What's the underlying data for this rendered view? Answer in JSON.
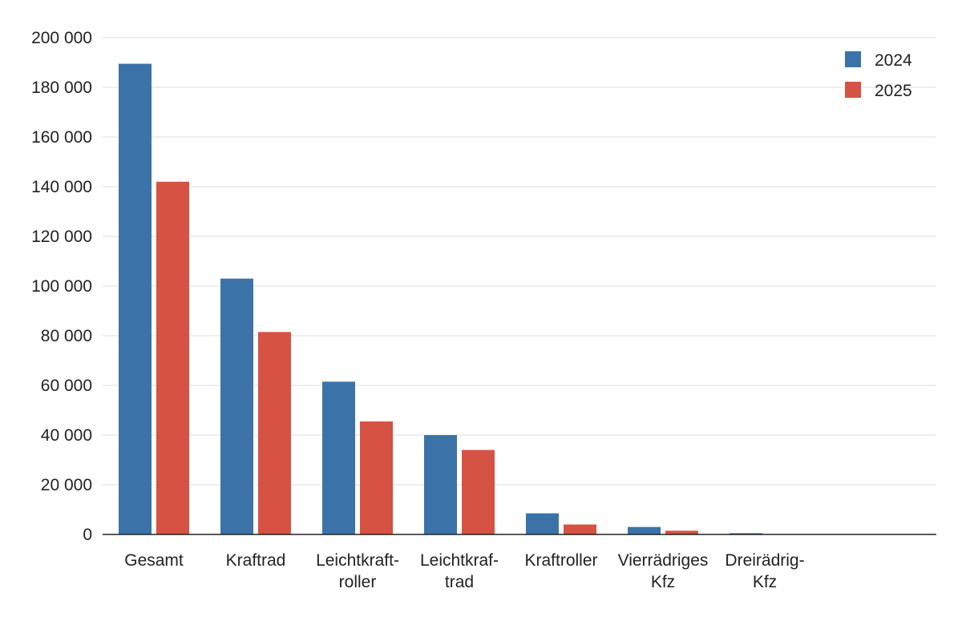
{
  "chart_data": {
    "type": "bar",
    "categories": [
      [
        "Gesamt"
      ],
      [
        "Kraftrad"
      ],
      [
        "Leichtkraft-",
        "roller"
      ],
      [
        "Leichtkraf-",
        "trad"
      ],
      [
        "Kraftroller"
      ],
      [
        "Vierrädriges",
        "Kfz"
      ],
      [
        "Dreirädrig-",
        "Kfz"
      ]
    ],
    "series": [
      {
        "name": "2024",
        "color": "#3b73a8",
        "values": [
          189500,
          103000,
          61500,
          40000,
          8500,
          3000,
          500
        ]
      },
      {
        "name": "2025",
        "color": "#d65243",
        "values": [
          142000,
          81500,
          45500,
          34000,
          4000,
          1500,
          0
        ]
      }
    ],
    "yticks": [
      "0",
      "20 000",
      "40 000",
      "60 000",
      "80 000",
      "100 000",
      "120 000",
      "140 000",
      "160 000",
      "180 000",
      "200 000"
    ],
    "ylim": [
      0,
      200000
    ],
    "grid": true,
    "legend_position": "top-right",
    "title": "",
    "xlabel": "",
    "ylabel": ""
  }
}
